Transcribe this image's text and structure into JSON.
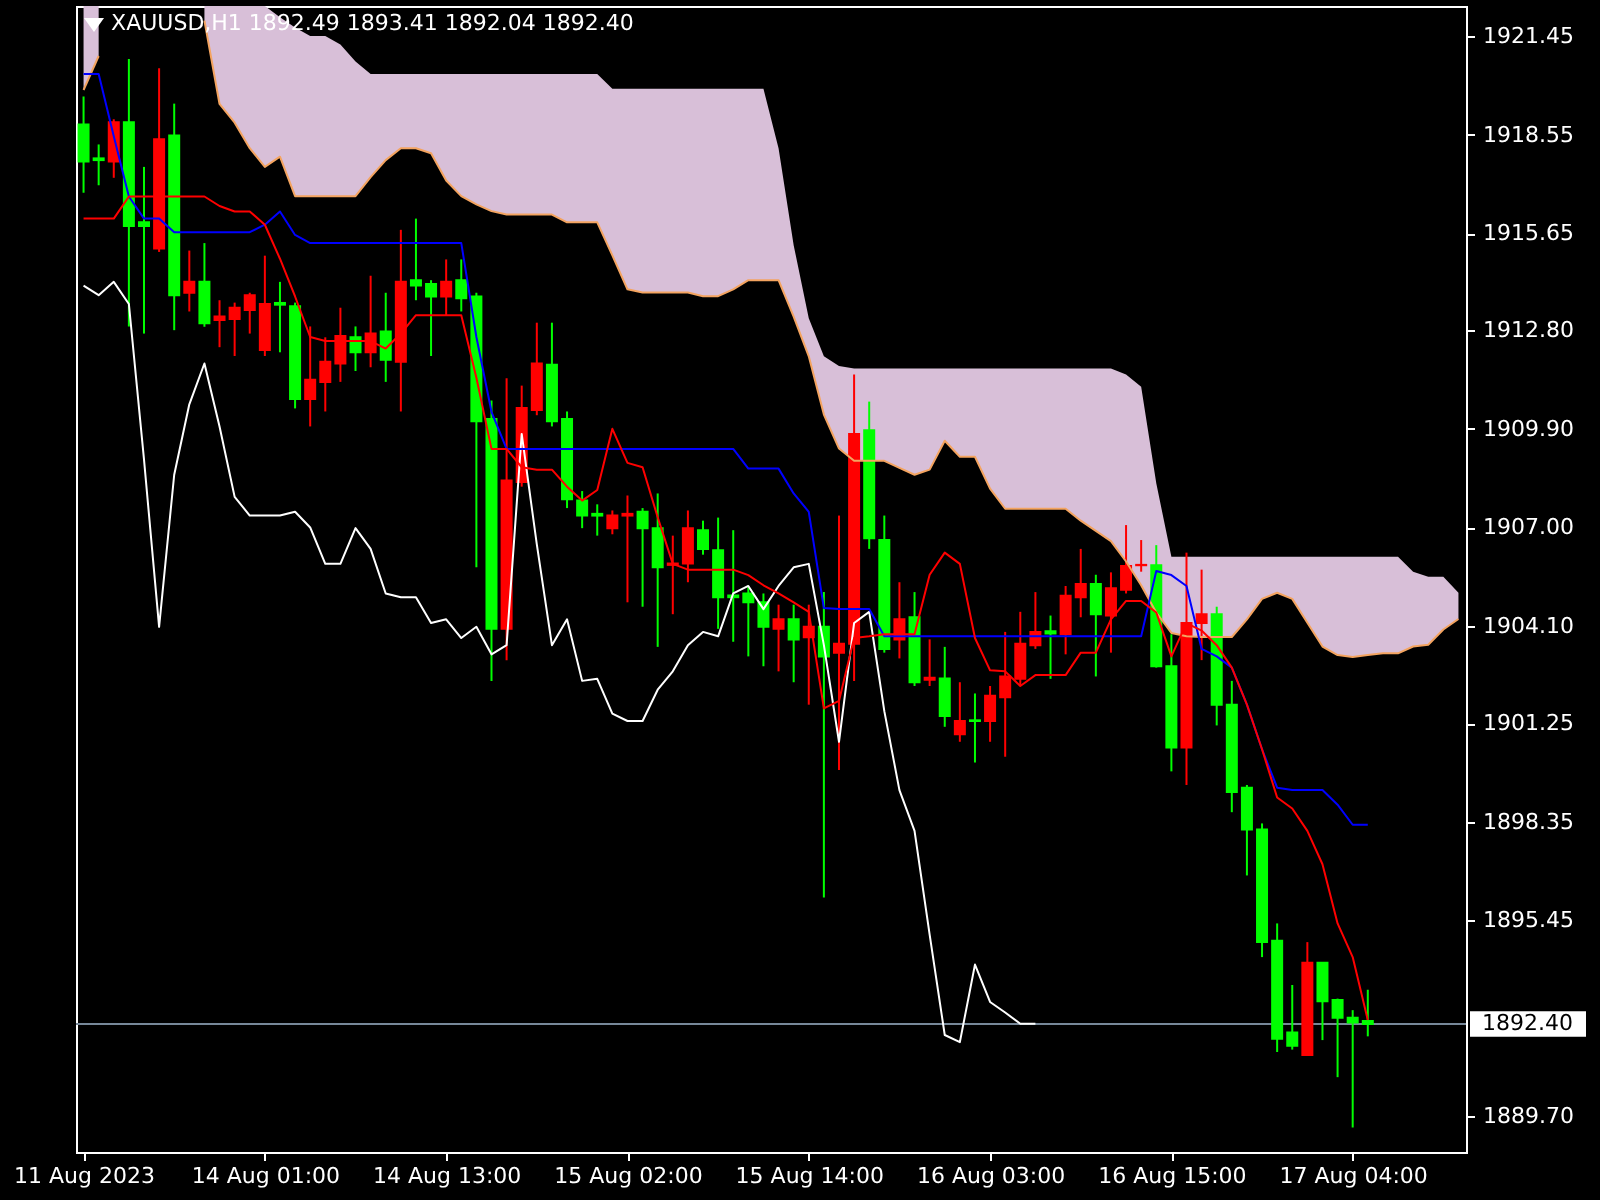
{
  "chart_data": {
    "type": "candlestick",
    "title": "XAUUSD,H1 1892.49 1893.41 1892.04 1892.40",
    "categories": [
      "11 Aug 2023",
      null,
      null,
      null,
      null,
      null,
      null,
      null,
      null,
      null,
      null,
      null,
      "14 Aug 01:00",
      null,
      null,
      null,
      null,
      null,
      null,
      null,
      null,
      null,
      null,
      null,
      "14 Aug 13:00",
      null,
      null,
      null,
      null,
      null,
      null,
      null,
      null,
      null,
      null,
      null,
      "15 Aug 02:00",
      null,
      null,
      null,
      null,
      null,
      null,
      null,
      null,
      null,
      null,
      null,
      "15 Aug 14:00",
      null,
      null,
      null,
      null,
      null,
      null,
      null,
      null,
      null,
      null,
      null,
      "16 Aug 03:00",
      null,
      null,
      null,
      null,
      null,
      null,
      null,
      null,
      null,
      null,
      null,
      "16 Aug 15:00",
      null,
      null,
      null,
      null,
      null,
      null,
      null,
      null,
      null,
      null,
      null,
      "17 Aug 04:00",
      null,
      null,
      null,
      null,
      null,
      null,
      null
    ],
    "ohlc": [
      [
        1918.85,
        1919.67,
        1916.84,
        1917.76
      ],
      [
        1917.85,
        1918.26,
        1917.06,
        1917.8
      ],
      [
        1917.76,
        1919.0,
        1917.28,
        1918.91
      ],
      [
        1918.91,
        1920.77,
        1912.91,
        1915.86
      ],
      [
        1915.97,
        1917.6,
        1912.7,
        1915.86
      ],
      [
        1915.2,
        1920.5,
        1915.1,
        1918.41
      ],
      [
        1918.52,
        1919.46,
        1912.8,
        1913.83
      ],
      [
        1913.9,
        1915.14,
        1913.35,
        1914.22
      ],
      [
        1914.22,
        1915.36,
        1912.9,
        1913.0
      ],
      [
        1913.1,
        1913.68,
        1912.3,
        1913.2
      ],
      [
        1913.13,
        1913.61,
        1912.04,
        1913.46
      ],
      [
        1913.39,
        1913.9,
        1912.7,
        1913.83
      ],
      [
        1912.22,
        1914.99,
        1912.04,
        1913.57
      ],
      [
        1913.6,
        1914.22,
        1912.15,
        1913.55
      ],
      [
        1913.5,
        1913.61,
        1910.5,
        1910.78
      ],
      [
        1910.78,
        1912.91,
        1909.97,
        1911.34
      ],
      [
        1911.28,
        1912.59,
        1910.41,
        1911.87
      ],
      [
        1911.82,
        1913.46,
        1911.28,
        1912.63
      ],
      [
        1912.59,
        1912.91,
        1911.6,
        1912.15
      ],
      [
        1912.15,
        1914.4,
        1911.71,
        1912.7
      ],
      [
        1912.76,
        1913.9,
        1911.28,
        1911.93
      ],
      [
        1911.87,
        1915.75,
        1910.41,
        1914.22
      ],
      [
        1914.27,
        1916.08,
        1913.68,
        1914.11
      ],
      [
        1914.16,
        1914.27,
        1912.04,
        1913.79
      ],
      [
        1913.79,
        1914.88,
        1913.24,
        1914.22
      ],
      [
        1914.27,
        1914.88,
        1913.35,
        1913.74
      ],
      [
        1913.79,
        1913.9,
        1905.83,
        1910.12
      ],
      [
        1910.19,
        1910.73,
        1902.49,
        1904.02
      ],
      [
        1904.02,
        1911.39,
        1903.1,
        1908.38
      ],
      [
        1908.34,
        1911.17,
        1908.2,
        1910.51
      ],
      [
        1910.45,
        1913.02,
        1910.3,
        1911.82
      ],
      [
        1911.78,
        1913.02,
        1909.97,
        1910.12
      ],
      [
        1910.19,
        1910.41,
        1907.57,
        1907.83
      ],
      [
        1907.79,
        1908.07,
        1906.98,
        1907.35
      ],
      [
        1907.4,
        1907.68,
        1906.76,
        1907.35
      ],
      [
        1906.98,
        1907.5,
        1906.8,
        1907.35
      ],
      [
        1907.35,
        1907.94,
        1904.8,
        1907.4
      ],
      [
        1907.46,
        1907.57,
        1904.67,
        1906.98
      ],
      [
        1906.98,
        1908.0,
        1903.49,
        1905.83
      ],
      [
        1905.9,
        1906.76,
        1904.45,
        1905.94
      ],
      [
        1905.94,
        1907.5,
        1905.39,
        1906.98
      ],
      [
        1906.92,
        1907.2,
        1906.2,
        1906.37
      ],
      [
        1906.33,
        1907.29,
        1904.02,
        1904.95
      ],
      [
        1905.0,
        1906.92,
        1903.64,
        1904.95
      ],
      [
        1905.06,
        1905.28,
        1903.21,
        1904.8
      ],
      [
        1904.8,
        1905.06,
        1902.92,
        1904.08
      ],
      [
        1904.02,
        1904.73,
        1902.77,
        1904.3
      ],
      [
        1904.3,
        1904.73,
        1902.45,
        1903.71
      ],
      [
        1903.77,
        1904.73,
        1901.79,
        1904.08
      ],
      [
        1904.08,
        1905.1,
        1896.12,
        1903.21
      ],
      [
        1903.32,
        1907.35,
        1899.87,
        1903.58
      ],
      [
        1903.58,
        1911.5,
        1902.49,
        1909.75
      ],
      [
        1909.86,
        1910.7,
        1906.37,
        1906.68
      ],
      [
        1906.63,
        1907.35,
        1903.32,
        1903.43
      ],
      [
        1903.71,
        1905.39,
        1903.15,
        1904.3
      ],
      [
        1904.36,
        1905.1,
        1902.34,
        1902.45
      ],
      [
        1902.52,
        1903.71,
        1902.34,
        1902.58
      ],
      [
        1902.56,
        1903.49,
        1901.14,
        1901.46
      ],
      [
        1900.92,
        1902.45,
        1900.7,
        1901.31
      ],
      [
        1901.33,
        1902.12,
        1900.09,
        1901.31
      ],
      [
        1901.31,
        1902.34,
        1900.7,
        1902.05
      ],
      [
        1902.01,
        1903.93,
        1900.26,
        1902.62
      ],
      [
        1902.55,
        1904.52,
        1902.34,
        1903.58
      ],
      [
        1903.54,
        1905.1,
        1903.43,
        1903.93
      ],
      [
        1903.95,
        1904.41,
        1902.55,
        1903.88
      ],
      [
        1903.86,
        1905.28,
        1903.27,
        1904.99
      ],
      [
        1904.95,
        1906.37,
        1904.36,
        1905.34
      ],
      [
        1905.34,
        1905.61,
        1902.62,
        1904.45
      ],
      [
        1904.41,
        1905.68,
        1903.32,
        1905.21
      ],
      [
        1905.17,
        1907.07,
        1905.06,
        1905.87
      ],
      [
        1905.89,
        1906.63,
        1905.7,
        1905.9
      ],
      [
        1905.89,
        1906.48,
        1902.88,
        1902.92
      ],
      [
        1902.92,
        1903.86,
        1899.83,
        1900.53
      ],
      [
        1900.53,
        1906.26,
        1899.43,
        1904.19
      ],
      [
        1904.19,
        1905.76,
        1903.1,
        1904.45
      ],
      [
        1904.45,
        1904.67,
        1901.18,
        1901.79
      ],
      [
        1901.79,
        1902.49,
        1898.63,
        1899.22
      ],
      [
        1899.35,
        1899.43,
        1896.77,
        1898.12
      ],
      [
        1898.12,
        1898.3,
        1894.37,
        1894.81
      ],
      [
        1894.85,
        1895.36,
        1891.58,
        1891.97
      ],
      [
        1892.15,
        1893.55,
        1891.65,
        1891.76
      ],
      [
        1891.49,
        1894.81,
        1891.49,
        1894.2
      ],
      [
        1894.2,
        1894.2,
        1891.93,
        1893.07
      ],
      [
        1893.11,
        1893.15,
        1890.84,
        1892.59
      ],
      [
        1892.59,
        1892.81,
        1889.36,
        1892.45
      ],
      [
        1892.49,
        1893.41,
        1892.04,
        1892.4
      ],
      null,
      null,
      null,
      null,
      null,
      null
    ],
    "colors": [
      "#00ff00",
      "#00ff00",
      "#ff0000",
      "#00ff00",
      "#00ff00",
      "#ff0000",
      "#00ff00",
      "#ff0000",
      "#00ff00",
      "#ff0000",
      "#ff0000",
      "#ff0000",
      "#ff0000",
      "#00ff00",
      "#00ff00",
      "#ff0000",
      "#ff0000",
      "#ff0000",
      "#00ff00",
      "#ff0000",
      "#00ff00",
      "#ff0000",
      "#00ff00",
      "#00ff00",
      "#ff0000",
      "#00ff00",
      "#00ff00",
      "#00ff00",
      "#ff0000",
      "#ff0000",
      "#ff0000",
      "#00ff00",
      "#00ff00",
      "#00ff00",
      "#00ff00",
      "#ff0000",
      "#ff0000",
      "#00ff00",
      "#00ff00",
      "#ff0000",
      "#ff0000",
      "#00ff00",
      "#00ff00",
      "#00ff00",
      "#00ff00",
      "#00ff00",
      "#ff0000",
      "#00ff00",
      "#ff0000",
      "#00ff00",
      "#ff0000",
      "#ff0000",
      "#00ff00",
      "#00ff00",
      "#ff0000",
      "#00ff00",
      "#ff0000",
      "#00ff00",
      "#ff0000",
      "#00ff00",
      "#ff0000",
      "#ff0000",
      "#ff0000",
      "#ff0000",
      "#00ff00",
      "#ff0000",
      "#ff0000",
      "#00ff00",
      "#ff0000",
      "#ff0000",
      "#ff0000",
      "#00ff00",
      "#00ff00",
      "#ff0000",
      "#ff0000",
      "#00ff00",
      "#00ff00",
      "#00ff00",
      "#00ff00",
      "#00ff00",
      "#00ff00",
      "#ff0000",
      "#00ff00",
      "#00ff00",
      "#00ff00",
      "#00ff00",
      null,
      null,
      null,
      null,
      null,
      null
    ],
    "series": [
      {
        "type": "line",
        "color": "#f4a460",
        "values": [
          1919.86,
          1920.86,
          null,
          null,
          null,
          null,
          null,
          null,
          1921.9,
          1919.45,
          1918.9,
          1918.15,
          1917.6,
          1917.9,
          1916.74,
          1916.74,
          1916.74,
          1916.74,
          1916.74,
          1917.3,
          1917.8,
          1918.15,
          1918.15,
          1918.0,
          1917.2,
          1916.74,
          1916.5,
          1916.3,
          1916.2,
          1916.2,
          1916.2,
          1916.2,
          1915.97,
          1915.97,
          1915.97,
          1915.0,
          1914.0,
          1913.91,
          1913.91,
          1913.91,
          1913.91,
          1913.8,
          1913.8,
          1914.0,
          1914.27,
          1914.27,
          1914.27,
          1913.2,
          1912.03,
          1910.32,
          1909.32,
          1908.96,
          1908.96,
          1908.96,
          1908.75,
          1908.55,
          1908.7,
          1909.55,
          1909.08,
          1909.08,
          1908.14,
          1907.55,
          1907.55,
          1907.55,
          1907.55,
          1907.55,
          1907.2,
          1906.9,
          1906.6,
          1906.0,
          1905.3,
          1904.5,
          1903.9,
          1903.8,
          1903.78,
          1903.78,
          1903.78,
          1904.3,
          1904.9,
          1905.08,
          1904.9,
          1904.2,
          1903.5,
          1903.25,
          1903.19,
          1903.25,
          1903.3,
          1903.3,
          1903.5,
          1903.55,
          1904.0,
          1904.31
        ],
        "upper": [
          1922.33,
          1922.33,
          null,
          null,
          null,
          null,
          null,
          null,
          1922.33,
          1922.33,
          1922.33,
          1922.33,
          1922.33,
          1922.0,
          1921.7,
          1921.45,
          1921.45,
          1921.2,
          1920.7,
          1920.33,
          1920.33,
          1920.33,
          1920.33,
          1920.33,
          1920.33,
          1920.33,
          1920.33,
          1920.33,
          1920.33,
          1920.33,
          1920.33,
          1920.33,
          1920.33,
          1920.33,
          1920.33,
          1919.9,
          1919.9,
          1919.9,
          1919.9,
          1919.9,
          1919.9,
          1919.9,
          1919.9,
          1919.9,
          1919.9,
          1919.9,
          1918.15,
          1915.3,
          1913.15,
          1912.03,
          1911.75,
          1911.67,
          1911.67,
          1911.67,
          1911.67,
          1911.67,
          1911.67,
          1911.67,
          1911.67,
          1911.67,
          1911.67,
          1911.67,
          1911.67,
          1911.67,
          1911.67,
          1911.67,
          1911.67,
          1911.67,
          1911.67,
          1911.5,
          1911.14,
          1908.3,
          1906.14,
          1906.14,
          1906.14,
          1906.14,
          1906.14,
          1906.14,
          1906.14,
          1906.14,
          1906.14,
          1906.14,
          1906.14,
          1906.14,
          1906.14,
          1906.14,
          1906.14,
          1906.14,
          1905.7,
          1905.55,
          1905.55,
          1905.08
        ],
        "lower": [
          1919.86,
          1920.86,
          null,
          null,
          null,
          null,
          null,
          null,
          1921.9,
          1919.45,
          1918.9,
          1918.15,
          1917.6,
          1917.9,
          1916.74,
          1916.74,
          1916.74,
          1916.74,
          1916.74,
          1917.3,
          1917.8,
          1918.15,
          1918.15,
          1918.0,
          1917.2,
          1916.74,
          1916.5,
          1916.3,
          1916.2,
          1916.2,
          1916.2,
          1916.2,
          1915.97,
          1915.97,
          1915.97,
          1915.0,
          1914.0,
          1913.91,
          1913.91,
          1913.91,
          1913.91,
          1913.8,
          1913.8,
          1914.0,
          1914.27,
          1914.27,
          1914.27,
          1913.2,
          1912.03,
          1910.32,
          1909.32,
          1908.96,
          1908.96,
          1908.96,
          1908.75,
          1908.55,
          1908.7,
          1909.55,
          1909.08,
          1909.08,
          1908.14,
          1907.55,
          1907.55,
          1907.55,
          1907.55,
          1907.55,
          1907.2,
          1906.9,
          1906.6,
          1906.0,
          1905.3,
          1904.5,
          1903.9,
          1903.8,
          1903.78,
          1903.78,
          1903.78,
          1904.3,
          1904.9,
          1905.08,
          1904.9,
          1904.2,
          1903.5,
          1903.25,
          1903.19,
          1903.25,
          1903.3,
          1903.3,
          1903.5,
          1903.55,
          1904.0,
          1904.31
        ]
      },
      {
        "type": "line",
        "color": "#ffffff",
        "values": [
          1914.11,
          1913.83,
          1914.22,
          1913.57,
          1909.0,
          1904.08,
          1908.55,
          1910.62,
          1911.82,
          1909.97,
          1907.9,
          1907.35,
          1907.35,
          1907.35,
          1907.46,
          1907.0,
          1905.93,
          1905.93,
          1906.98,
          1906.37,
          1905.06,
          1904.95,
          1904.95,
          1904.19,
          1904.3,
          1903.75,
          1904.08,
          1903.27,
          1903.54,
          1909.75,
          1906.5,
          1903.54,
          1904.3,
          1902.49,
          1902.55,
          1901.53,
          1901.31,
          1901.31,
          1902.23,
          1902.77,
          1903.54,
          1903.93,
          1903.8,
          1905.06,
          1905.28,
          1904.6,
          1905.28,
          1905.83,
          1905.93,
          1903.54,
          1900.7,
          1904.19,
          1904.52,
          1901.6,
          1899.28,
          1898.08,
          1895.03,
          1892.08,
          1891.87,
          1894.15,
          1893.05,
          1892.74,
          1892.41,
          1892.41,
          null,
          null,
          null,
          null,
          null,
          null,
          null,
          null,
          null,
          null,
          null,
          null,
          null,
          null,
          null,
          null,
          null,
          null,
          null,
          null,
          null,
          null,
          null,
          null,
          null,
          null,
          null,
          null
        ]
      },
      {
        "type": "line",
        "color": "#0000ff",
        "values": [
          1920.33,
          1920.33,
          1918.5,
          1916.73,
          1916.08,
          1916.08,
          1915.68,
          1915.68,
          1915.68,
          1915.68,
          1915.68,
          1915.68,
          1915.9,
          1916.29,
          1915.6,
          1915.36,
          1915.36,
          1915.36,
          1915.36,
          1915.36,
          1915.36,
          1915.36,
          1915.36,
          1915.36,
          1915.36,
          1915.36,
          1912.6,
          1910.4,
          1909.31,
          1909.31,
          1909.31,
          1909.31,
          1909.31,
          1909.31,
          1909.31,
          1909.31,
          1909.31,
          1909.31,
          1909.31,
          1909.31,
          1909.31,
          1909.31,
          1909.31,
          1909.31,
          1908.73,
          1908.73,
          1908.73,
          1908.0,
          1907.46,
          1904.63,
          1904.6,
          1904.6,
          1904.6,
          1903.8,
          1903.8,
          1903.8,
          1903.8,
          1903.8,
          1903.8,
          1903.8,
          1903.8,
          1903.8,
          1903.8,
          1903.8,
          1903.8,
          1903.8,
          1903.8,
          1903.8,
          1903.8,
          1903.8,
          1903.8,
          1905.72,
          1905.6,
          1905.28,
          1903.43,
          1903.21,
          1902.88,
          1901.79,
          1900.48,
          1899.35,
          1899.28,
          1899.28,
          1899.28,
          1898.85,
          1898.26,
          1898.26,
          null,
          null,
          null,
          null,
          null,
          null
        ]
      },
      {
        "type": "line",
        "color": "#ff0000",
        "values": [
          1916.08,
          1916.08,
          1916.08,
          1916.73,
          1916.73,
          1916.73,
          1916.73,
          1916.73,
          1916.73,
          1916.45,
          1916.29,
          1916.29,
          1915.9,
          1914.9,
          1913.79,
          1912.6,
          1912.48,
          1912.48,
          1912.48,
          1912.48,
          1912.26,
          1912.7,
          1913.24,
          1913.24,
          1913.24,
          1913.24,
          1911.4,
          1909.31,
          1909.31,
          1908.77,
          1908.7,
          1908.7,
          1908.2,
          1907.79,
          1908.1,
          1909.9,
          1908.9,
          1908.77,
          1907.3,
          1905.93,
          1905.76,
          1905.76,
          1905.76,
          1905.76,
          1905.6,
          1905.3,
          1905.06,
          1904.8,
          1904.52,
          1901.68,
          1901.9,
          1903.75,
          1903.8,
          1903.86,
          1903.86,
          1903.86,
          1905.61,
          1906.26,
          1905.93,
          1903.75,
          1902.8,
          1902.77,
          1902.34,
          1902.66,
          1902.66,
          1902.66,
          1903.32,
          1903.32,
          1904.3,
          1904.84,
          1904.84,
          1904.5,
          1903.21,
          1904.19,
          1903.97,
          1903.54,
          1902.88,
          1901.79,
          1900.48,
          1899.06,
          1898.74,
          1898.08,
          1897.1,
          1895.36,
          1894.37,
          1892.52,
          null,
          null,
          null,
          null,
          null,
          null
        ]
      }
    ],
    "ylim": [
      1888.64,
      1922.33
    ],
    "yticks": [
      1921.45,
      1918.55,
      1915.65,
      {
        "value": 1912.8,
        "label": "1912.80"
      },
      {
        "value": 1909.9,
        "label": "1909.90"
      },
      {
        "value": 1907,
        "label": "1907.00"
      },
      {
        "value": 1904.1,
        "label": "1904.10"
      },
      1901.25,
      1898.35,
      1895.45,
      {
        "value": 1889.7,
        "label": "1889.70"
      }
    ],
    "ref_lines": [
      {
        "axis": "y",
        "value": 1892.4,
        "label": "1892.40",
        "color": "#778899"
      }
    ]
  }
}
